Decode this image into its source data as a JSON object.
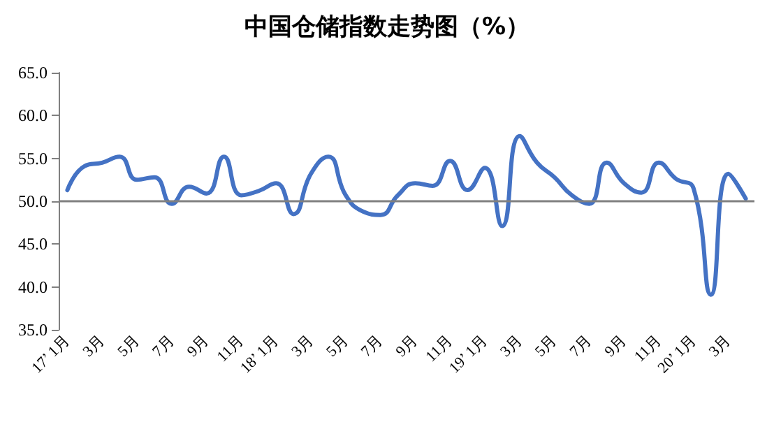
{
  "chart_data": {
    "type": "line",
    "title": "中国仓储指数走势图（%）",
    "categories": [
      "17’ 1月",
      null,
      "3月",
      null,
      "5月",
      null,
      "7月",
      null,
      "9月",
      null,
      "11月",
      null,
      "18’ 1月",
      null,
      "3月",
      null,
      "5月",
      null,
      "7月",
      null,
      "9月",
      null,
      "11月",
      null,
      "19’ 1月",
      null,
      "3月",
      null,
      "5月",
      null,
      "7月",
      null,
      "9月",
      null,
      "11月",
      null,
      "20’ 1月",
      null,
      "3月",
      null
    ],
    "series": [
      {
        "color": "#4472c4",
        "values": [
          51.3,
          54.1,
          54.5,
          55.2,
          52.5,
          52.8,
          49.7,
          51.7,
          50.9,
          55.2,
          50.7,
          51.2,
          52.1,
          48.5,
          53.2,
          55.2,
          50.7,
          48.8,
          48.4,
          50.7,
          52.1,
          51.8,
          54.7,
          51.3,
          53.9,
          47.1,
          57.6,
          54.5,
          52.8,
          50.7,
          49.7,
          54.5,
          52.1,
          51.0,
          54.5,
          52.6,
          51.5,
          39.1,
          53.2,
          50.3
        ]
      }
    ],
    "ylim": [
      35,
      65
    ],
    "yticks": [
      {
        "value": 35,
        "label": "35.0"
      },
      {
        "value": 40,
        "label": "40.0"
      },
      {
        "value": 45,
        "label": "45.0"
      },
      {
        "value": 50,
        "label": "50.0"
      },
      {
        "value": 55,
        "label": "55.0"
      },
      {
        "value": 60,
        "label": "60.0"
      },
      {
        "value": 65,
        "label": "65.0"
      }
    ],
    "ref_lines": [
      {
        "axis": "y",
        "value": 50,
        "color": "#808080"
      }
    ],
    "marker": "none",
    "line_style": "solid"
  }
}
